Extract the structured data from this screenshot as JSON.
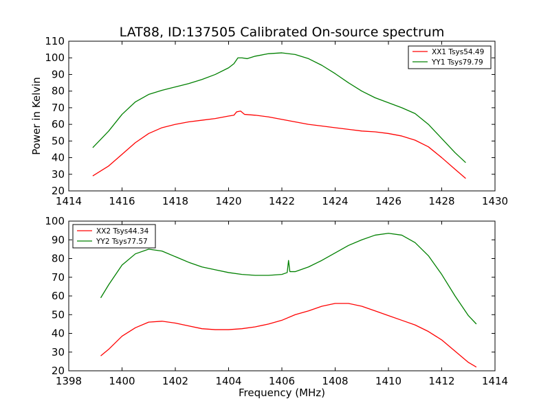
{
  "chart_data": [
    {
      "type": "line",
      "title": "LAT88, ID:137505 Calibrated On-source spectrum",
      "xlabel": "",
      "ylabel": "Power in Kelvin",
      "xlim": [
        1414,
        1430
      ],
      "ylim": [
        20,
        110
      ],
      "xticks": [
        "1414",
        "1416",
        "1418",
        "1420",
        "1422",
        "1424",
        "1426",
        "1428",
        "1430"
      ],
      "yticks": [
        "20",
        "30",
        "40",
        "50",
        "60",
        "70",
        "80",
        "90",
        "100",
        "110"
      ],
      "legend_position": "top-right",
      "grid": false,
      "series": [
        {
          "name": "XX1 Tsys54.49",
          "color": "#ff0000",
          "points": [
            [
              1414.9,
              29
            ],
            [
              1415.5,
              35
            ],
            [
              1416.0,
              42
            ],
            [
              1416.5,
              49
            ],
            [
              1417.0,
              54.5
            ],
            [
              1417.5,
              58
            ],
            [
              1418.0,
              60
            ],
            [
              1418.5,
              61.5
            ],
            [
              1419.0,
              62.5
            ],
            [
              1419.5,
              63.5
            ],
            [
              1420.0,
              65
            ],
            [
              1420.2,
              65.5
            ],
            [
              1420.3,
              67.5
            ],
            [
              1420.45,
              68
            ],
            [
              1420.6,
              66
            ],
            [
              1421.0,
              65.5
            ],
            [
              1421.5,
              64.5
            ],
            [
              1422.0,
              63
            ],
            [
              1422.5,
              61.5
            ],
            [
              1423.0,
              60
            ],
            [
              1423.5,
              59
            ],
            [
              1424.0,
              58
            ],
            [
              1424.5,
              57
            ],
            [
              1425.0,
              56
            ],
            [
              1425.5,
              55.5
            ],
            [
              1426.0,
              54.5
            ],
            [
              1426.5,
              53
            ],
            [
              1427.0,
              50.5
            ],
            [
              1427.5,
              46.5
            ],
            [
              1428.0,
              40
            ],
            [
              1428.5,
              33
            ],
            [
              1428.9,
              27.5
            ]
          ]
        },
        {
          "name": "YY1 Tsys79.79",
          "color": "#008000",
          "points": [
            [
              1414.9,
              46
            ],
            [
              1415.5,
              56
            ],
            [
              1416.0,
              66
            ],
            [
              1416.5,
              73.5
            ],
            [
              1417.0,
              78
            ],
            [
              1417.5,
              80.5
            ],
            [
              1418.0,
              82.5
            ],
            [
              1418.5,
              84.5
            ],
            [
              1419.0,
              87
            ],
            [
              1419.5,
              90
            ],
            [
              1420.0,
              94
            ],
            [
              1420.2,
              96.5
            ],
            [
              1420.35,
              100
            ],
            [
              1420.5,
              100
            ],
            [
              1420.7,
              99.5
            ],
            [
              1421.0,
              101
            ],
            [
              1421.5,
              102.5
            ],
            [
              1422.0,
              103
            ],
            [
              1422.5,
              102
            ],
            [
              1423.0,
              99.5
            ],
            [
              1423.5,
              95.5
            ],
            [
              1424.0,
              90.5
            ],
            [
              1424.5,
              85
            ],
            [
              1425.0,
              80
            ],
            [
              1425.5,
              76
            ],
            [
              1426.0,
              73
            ],
            [
              1426.5,
              70
            ],
            [
              1427.0,
              66.5
            ],
            [
              1427.5,
              60
            ],
            [
              1428.0,
              51.5
            ],
            [
              1428.5,
              43
            ],
            [
              1428.9,
              37
            ]
          ]
        }
      ]
    },
    {
      "type": "line",
      "title": "",
      "xlabel": "Frequency (MHz)",
      "ylabel": "",
      "xlim": [
        1398,
        1414
      ],
      "ylim": [
        20,
        100
      ],
      "xticks": [
        "1398",
        "1400",
        "1402",
        "1404",
        "1406",
        "1408",
        "1410",
        "1412",
        "1414"
      ],
      "yticks": [
        "20",
        "30",
        "40",
        "50",
        "60",
        "70",
        "80",
        "90",
        "100"
      ],
      "legend_position": "top-left",
      "grid": false,
      "series": [
        {
          "name": "XX2 Tsys44.34",
          "color": "#ff0000",
          "points": [
            [
              1399.2,
              28
            ],
            [
              1399.5,
              31.5
            ],
            [
              1400.0,
              38.5
            ],
            [
              1400.5,
              43
            ],
            [
              1401.0,
              46
            ],
            [
              1401.5,
              46.5
            ],
            [
              1402.0,
              45.5
            ],
            [
              1402.5,
              44
            ],
            [
              1403.0,
              42.5
            ],
            [
              1403.5,
              42
            ],
            [
              1404.0,
              42
            ],
            [
              1404.5,
              42.5
            ],
            [
              1405.0,
              43.5
            ],
            [
              1405.5,
              45
            ],
            [
              1406.0,
              47
            ],
            [
              1406.5,
              50
            ],
            [
              1407.0,
              52
            ],
            [
              1407.5,
              54.5
            ],
            [
              1408.0,
              56
            ],
            [
              1408.5,
              56
            ],
            [
              1409.0,
              54.5
            ],
            [
              1409.5,
              52
            ],
            [
              1410.0,
              49.5
            ],
            [
              1410.5,
              47
            ],
            [
              1411.0,
              44.5
            ],
            [
              1411.5,
              41
            ],
            [
              1412.0,
              36.5
            ],
            [
              1412.5,
              30.5
            ],
            [
              1413.0,
              24.5
            ],
            [
              1413.3,
              22
            ]
          ]
        },
        {
          "name": "YY2 Tsys77.57",
          "color": "#008000",
          "points": [
            [
              1399.2,
              59
            ],
            [
              1399.5,
              66
            ],
            [
              1400.0,
              76.5
            ],
            [
              1400.5,
              82.5
            ],
            [
              1401.0,
              85
            ],
            [
              1401.5,
              84
            ],
            [
              1402.0,
              81
            ],
            [
              1402.5,
              78
            ],
            [
              1403.0,
              75.5
            ],
            [
              1403.5,
              74
            ],
            [
              1404.0,
              72.5
            ],
            [
              1404.5,
              71.5
            ],
            [
              1405.0,
              71
            ],
            [
              1405.5,
              71
            ],
            [
              1406.0,
              71.5
            ],
            [
              1406.2,
              72.5
            ],
            [
              1406.25,
              79
            ],
            [
              1406.3,
              73
            ],
            [
              1406.5,
              73
            ],
            [
              1407.0,
              75.5
            ],
            [
              1407.5,
              79
            ],
            [
              1408.0,
              83
            ],
            [
              1408.5,
              87
            ],
            [
              1409.0,
              90
            ],
            [
              1409.5,
              92.5
            ],
            [
              1410.0,
              93.5
            ],
            [
              1410.5,
              92.5
            ],
            [
              1411.0,
              88.5
            ],
            [
              1411.5,
              81.5
            ],
            [
              1412.0,
              71.5
            ],
            [
              1412.5,
              60
            ],
            [
              1413.0,
              49.5
            ],
            [
              1413.3,
              45
            ]
          ]
        }
      ]
    }
  ]
}
